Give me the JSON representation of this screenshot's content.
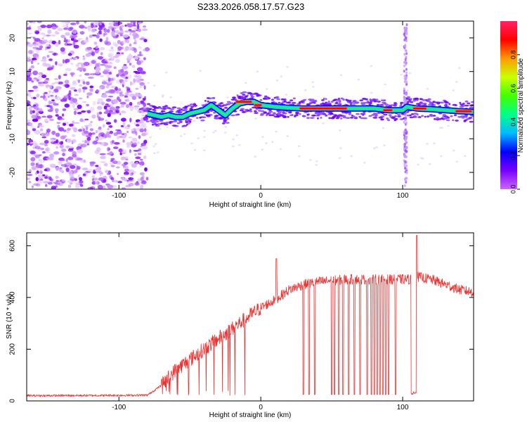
{
  "figure_title": "S233.2026.058.17.57.G23",
  "chart_data": [
    {
      "type": "heatmap",
      "title": "S233.2026.058.17.57.G23",
      "xlabel": "Height of straight line (km)",
      "ylabel": "Frequency (Hz)",
      "xlim": [
        -165,
        150
      ],
      "ylim": [
        -25,
        25
      ],
      "xticks": [
        -100,
        0,
        100
      ],
      "xtick_labels": [
        "-100",
        "0",
        "100"
      ],
      "yticks": [
        -20,
        -10,
        0,
        10,
        20
      ],
      "ytick_labels": [
        "-20",
        "-10",
        "0",
        "10",
        "20"
      ],
      "colorbar": {
        "label": "Normalized spectral amplitude",
        "range": [
          0,
          1
        ],
        "ticks": [
          0.0,
          0.2,
          0.4,
          0.6,
          0.8
        ],
        "tick_labels": [
          "0.0",
          "0.2",
          "0.4",
          "0.6",
          "0.8"
        ],
        "colors": [
          "#cc66ff",
          "#7700ff",
          "#0000ff",
          "#00bbff",
          "#00ff88",
          "#44ff00",
          "#ccff00",
          "#ff9900",
          "#ff0000",
          "#ff2266"
        ]
      },
      "noise_region_x": [
        -165,
        -80
      ],
      "ridge_frequency": {
        "x": [
          -80,
          -75,
          -70,
          -65,
          -60,
          -55,
          -50,
          -45,
          -40,
          -35,
          -30,
          -25,
          -20,
          -15,
          -10,
          -5,
          0,
          10,
          20,
          30,
          40,
          50,
          60,
          70,
          80,
          90,
          100,
          103,
          110,
          120,
          130,
          140,
          150
        ],
        "y": [
          -2.5,
          -3,
          -3.5,
          -3,
          -3.5,
          -3.5,
          -2.5,
          -2,
          -1.5,
          0,
          -1.5,
          -3,
          -1,
          0.5,
          1,
          1,
          0,
          -0.5,
          -0.8,
          -1,
          -1,
          -1,
          -1,
          -1,
          -1,
          -1.5,
          -1.5,
          -0.5,
          -1,
          -1.2,
          -1.5,
          -1.8,
          -2
        ]
      },
      "hot_segments": [
        {
          "x": [
            -17,
            -7
          ],
          "y": 1
        },
        {
          "x": [
            -4,
            0
          ],
          "y": 0
        },
        {
          "x": [
            28,
            60
          ],
          "y": -1
        },
        {
          "x": [
            87,
            92
          ],
          "y": -1.5
        },
        {
          "x": [
            108,
            116
          ],
          "y": -1
        },
        {
          "x": [
            138,
            148
          ],
          "y": -1.8
        }
      ],
      "spike_x": 102
    },
    {
      "type": "line",
      "xlabel": "Height of straight line (km)",
      "ylabel": "SNR (10 * v/v)",
      "xlim": [
        -165,
        150
      ],
      "ylim": [
        0,
        650
      ],
      "xticks": [
        -100,
        0,
        100
      ],
      "xtick_labels": [
        "-100",
        "0",
        "100"
      ],
      "yticks": [
        0,
        200,
        400,
        600
      ],
      "ytick_labels": [
        "0",
        "200",
        "400",
        "600"
      ],
      "color": "#ee3333",
      "trend": {
        "x": [
          -165,
          -80,
          -70,
          -60,
          -50,
          -40,
          -30,
          -20,
          -10,
          0,
          10,
          20,
          30,
          40,
          50,
          60,
          70,
          80,
          90,
          100,
          105,
          110,
          120,
          130,
          140,
          150
        ],
        "y": [
          20,
          22,
          60,
          120,
          160,
          200,
          240,
          280,
          320,
          360,
          390,
          430,
          450,
          460,
          465,
          470,
          470,
          470,
          470,
          470,
          470,
          480,
          470,
          450,
          430,
          420
        ]
      },
      "dropouts_x": [
        30,
        34,
        38,
        50,
        52,
        55,
        58,
        62,
        66,
        70,
        75,
        78,
        80,
        82,
        84,
        86,
        88,
        90,
        95
      ],
      "dropout_value": 25,
      "dropout_band_x": [
        106,
        110
      ],
      "peaks": [
        {
          "x": 11,
          "y": 550
        },
        {
          "x": 110,
          "y": 640
        }
      ]
    }
  ]
}
